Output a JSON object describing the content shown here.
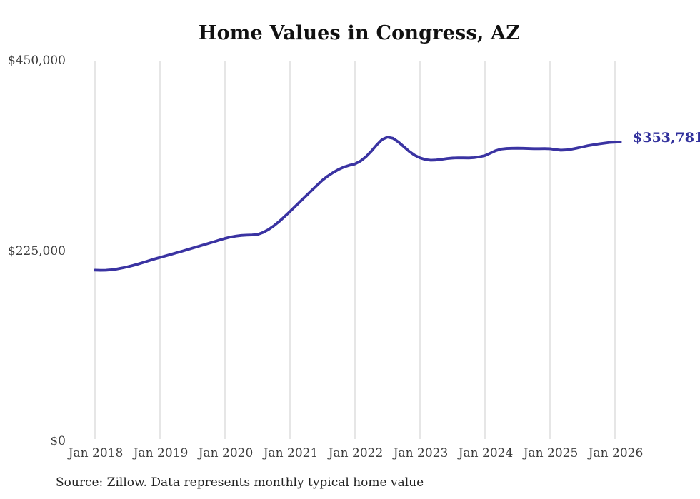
{
  "title": "Home Values in Congress, AZ",
  "source_note": "Source: Zillow. Data represents monthly typical home value",
  "end_label": "$353,781",
  "colors": {
    "line": "#3a33a2",
    "end_label": "#31309c",
    "grid": "#cccccc",
    "axis_text": "#3d3d3d",
    "title_text": "#111111",
    "source_text": "#222222"
  },
  "chart_data": {
    "type": "line",
    "title": "Home Values in Congress, AZ",
    "xlabel": "",
    "ylabel": "",
    "ylim": [
      0,
      450000
    ],
    "grid": "vertical-only",
    "legend": "none",
    "x_tick_labels": [
      "Jan 2018",
      "Jan 2019",
      "Jan 2020",
      "Jan 2021",
      "Jan 2022",
      "Jan 2023",
      "Jan 2024",
      "Jan 2025",
      "Jan 2026"
    ],
    "y_ticks": [
      {
        "label": "$0",
        "value": 0
      },
      {
        "label": "$225,000",
        "value": 225000
      },
      {
        "label": "$450,000",
        "value": 450000
      }
    ],
    "series": [
      {
        "name": "Monthly typical home value",
        "start_month": "2018-01",
        "end_month": "2026-02",
        "final_value": 353781,
        "values": [
          202300,
          202100,
          202200,
          202700,
          203600,
          204800,
          206200,
          207800,
          209600,
          211500,
          213500,
          215500,
          217300,
          219100,
          220900,
          222700,
          224500,
          226400,
          228300,
          230200,
          232100,
          234000,
          235900,
          237900,
          239800,
          241400,
          242500,
          243300,
          243700,
          243900,
          244400,
          246800,
          250200,
          254600,
          259800,
          265600,
          271700,
          277900,
          284100,
          290300,
          296500,
          302700,
          308700,
          313600,
          317800,
          321400,
          324300,
          326300,
          327800,
          331200,
          336200,
          342800,
          350300,
          356700,
          359500,
          358200,
          353800,
          348300,
          342700,
          338200,
          335000,
          333000,
          332200,
          332500,
          333300,
          334200,
          334800,
          335100,
          335000,
          334900,
          335300,
          336300,
          337700,
          340600,
          343600,
          345400,
          346100,
          346300,
          346400,
          346300,
          346100,
          345900,
          345900,
          346000,
          345800,
          344800,
          344100,
          344400,
          345300,
          346600,
          348000,
          349400,
          350500,
          351500,
          352400,
          353200,
          353600,
          353781
        ]
      }
    ]
  }
}
